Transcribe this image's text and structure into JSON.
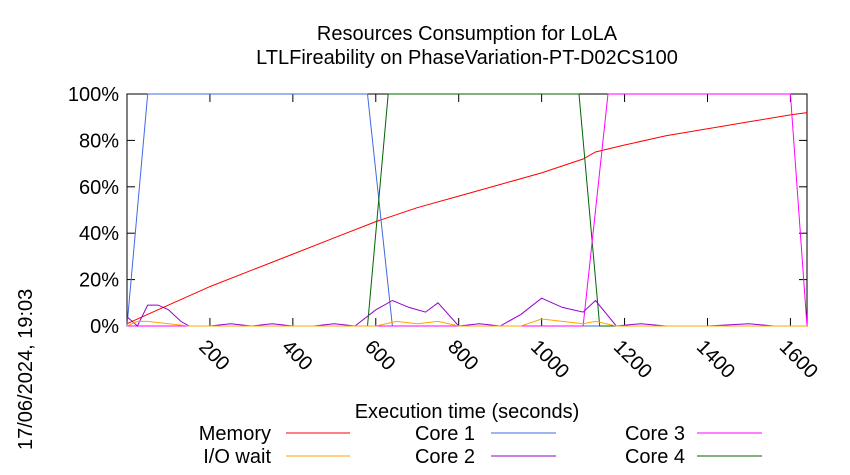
{
  "chart_data": {
    "type": "line",
    "title": "Resources Consumption for LoLA",
    "subtitle": "LTLFireability on PhaseVariation-PT-D02CS100",
    "xlabel": "Execution time (seconds)",
    "ylabel": "",
    "timestamp": "17/06/2024, 19:03",
    "xlim": [
      0,
      1640
    ],
    "ylim": [
      0,
      100
    ],
    "x_ticks": [
      200,
      400,
      600,
      800,
      1000,
      1200,
      1400,
      1600
    ],
    "y_ticks": [
      {
        "value": 0,
        "label": "0%"
      },
      {
        "value": 20,
        "label": "20%"
      },
      {
        "value": 40,
        "label": "40%"
      },
      {
        "value": 60,
        "label": "60%"
      },
      {
        "value": 80,
        "label": "80%"
      },
      {
        "value": 100,
        "label": "100%"
      }
    ],
    "grid": false,
    "legend_position": "bottom",
    "series": [
      {
        "name": "Memory",
        "color": "#ff0000",
        "points": [
          [
            0,
            1
          ],
          [
            100,
            9
          ],
          [
            200,
            17
          ],
          [
            300,
            24
          ],
          [
            400,
            31
          ],
          [
            500,
            38
          ],
          [
            600,
            45
          ],
          [
            700,
            51
          ],
          [
            800,
            56
          ],
          [
            900,
            61
          ],
          [
            1000,
            66
          ],
          [
            1100,
            72
          ],
          [
            1130,
            75
          ],
          [
            1200,
            78
          ],
          [
            1300,
            82
          ],
          [
            1400,
            85
          ],
          [
            1500,
            88
          ],
          [
            1600,
            91
          ],
          [
            1640,
            92
          ]
        ]
      },
      {
        "name": "I/O wait",
        "color": "#ffa500",
        "points": [
          [
            0,
            0
          ],
          [
            25,
            2
          ],
          [
            50,
            2
          ],
          [
            100,
            1
          ],
          [
            150,
            0
          ],
          [
            600,
            0
          ],
          [
            650,
            2
          ],
          [
            700,
            1
          ],
          [
            750,
            2
          ],
          [
            800,
            0
          ],
          [
            950,
            0
          ],
          [
            1000,
            3
          ],
          [
            1050,
            2
          ],
          [
            1100,
            1
          ],
          [
            1130,
            2
          ],
          [
            1180,
            0
          ],
          [
            1640,
            0
          ]
        ]
      },
      {
        "name": "Core 1",
        "color": "#4169e1",
        "points": [
          [
            0,
            0
          ],
          [
            50,
            100
          ],
          [
            100,
            100
          ],
          [
            200,
            100
          ],
          [
            300,
            100
          ],
          [
            400,
            100
          ],
          [
            500,
            100
          ],
          [
            580,
            100
          ],
          [
            640,
            0
          ],
          [
            700,
            0
          ],
          [
            800,
            0
          ],
          [
            900,
            0
          ],
          [
            1000,
            0
          ],
          [
            1100,
            0
          ],
          [
            1200,
            0
          ],
          [
            1300,
            0
          ],
          [
            1400,
            0
          ],
          [
            1500,
            0
          ],
          [
            1640,
            0
          ]
        ]
      },
      {
        "name": "Core 2",
        "color": "#9400d3",
        "points": [
          [
            0,
            4
          ],
          [
            25,
            0
          ],
          [
            50,
            9
          ],
          [
            75,
            9
          ],
          [
            100,
            7
          ],
          [
            130,
            2
          ],
          [
            150,
            0
          ],
          [
            200,
            0
          ],
          [
            250,
            1
          ],
          [
            300,
            0
          ],
          [
            350,
            1
          ],
          [
            400,
            0
          ],
          [
            450,
            0
          ],
          [
            500,
            1
          ],
          [
            550,
            0
          ],
          [
            600,
            7
          ],
          [
            640,
            11
          ],
          [
            680,
            8
          ],
          [
            720,
            6
          ],
          [
            750,
            10
          ],
          [
            800,
            0
          ],
          [
            850,
            1
          ],
          [
            900,
            0
          ],
          [
            950,
            5
          ],
          [
            1000,
            12
          ],
          [
            1050,
            8
          ],
          [
            1100,
            6
          ],
          [
            1130,
            11
          ],
          [
            1180,
            0
          ],
          [
            1240,
            1
          ],
          [
            1300,
            0
          ],
          [
            1400,
            0
          ],
          [
            1500,
            1
          ],
          [
            1560,
            0
          ],
          [
            1640,
            0
          ]
        ]
      },
      {
        "name": "Core 3",
        "color": "#ff00ff",
        "points": [
          [
            0,
            0
          ],
          [
            200,
            0
          ],
          [
            400,
            0
          ],
          [
            600,
            0
          ],
          [
            800,
            0
          ],
          [
            1000,
            0
          ],
          [
            1100,
            0
          ],
          [
            1160,
            100
          ],
          [
            1200,
            100
          ],
          [
            1300,
            100
          ],
          [
            1400,
            100
          ],
          [
            1500,
            100
          ],
          [
            1600,
            100
          ],
          [
            1640,
            0
          ]
        ]
      },
      {
        "name": "Core 4",
        "color": "#006400",
        "points": [
          [
            0,
            0
          ],
          [
            200,
            0
          ],
          [
            400,
            0
          ],
          [
            580,
            0
          ],
          [
            630,
            100
          ],
          [
            700,
            100
          ],
          [
            800,
            100
          ],
          [
            900,
            100
          ],
          [
            1000,
            100
          ],
          [
            1090,
            100
          ],
          [
            1140,
            0
          ],
          [
            1200,
            0
          ],
          [
            1400,
            0
          ],
          [
            1640,
            0
          ]
        ]
      }
    ]
  }
}
